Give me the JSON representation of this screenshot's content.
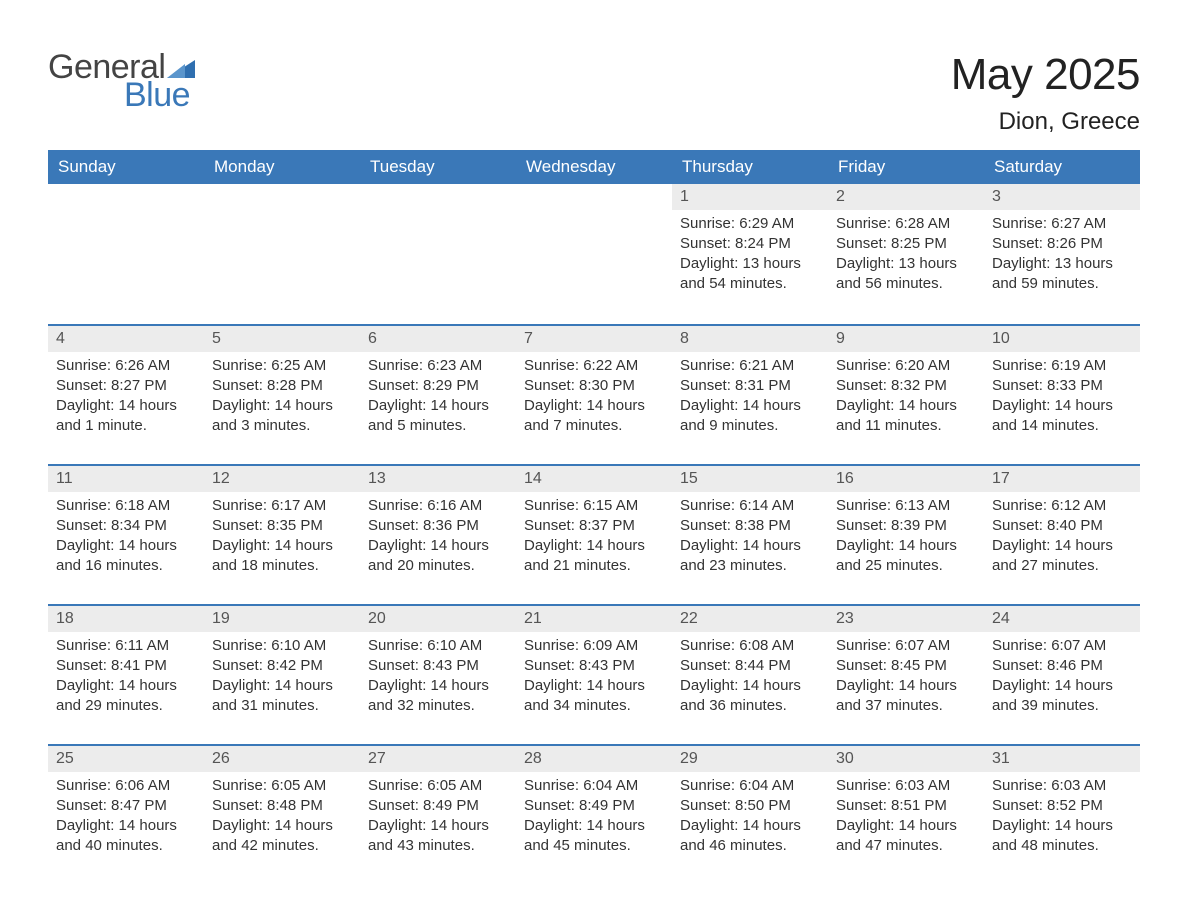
{
  "brand": {
    "word1": "General",
    "word2": "Blue",
    "tri_color": "#2f6fb0"
  },
  "title": "May 2025",
  "location": "Dion, Greece",
  "colors": {
    "header_bg": "#3a78b8",
    "header_text": "#ffffff",
    "row_band": "#ececec",
    "rule": "#3a78b8",
    "text": "#333333",
    "bg": "#ffffff"
  },
  "typography": {
    "title_fontsize": 44,
    "location_fontsize": 24,
    "dayheader_fontsize": 17,
    "cell_fontsize": 15,
    "logo_fontsize": 34
  },
  "layout": {
    "columns": 7,
    "rows": 5,
    "first_weekday_index": 4
  },
  "day_names": [
    "Sunday",
    "Monday",
    "Tuesday",
    "Wednesday",
    "Thursday",
    "Friday",
    "Saturday"
  ],
  "weeks": [
    [
      null,
      null,
      null,
      null,
      {
        "n": "1",
        "sunrise": "Sunrise: 6:29 AM",
        "sunset": "Sunset: 8:24 PM",
        "dl1": "Daylight: 13 hours",
        "dl2": "and 54 minutes."
      },
      {
        "n": "2",
        "sunrise": "Sunrise: 6:28 AM",
        "sunset": "Sunset: 8:25 PM",
        "dl1": "Daylight: 13 hours",
        "dl2": "and 56 minutes."
      },
      {
        "n": "3",
        "sunrise": "Sunrise: 6:27 AM",
        "sunset": "Sunset: 8:26 PM",
        "dl1": "Daylight: 13 hours",
        "dl2": "and 59 minutes."
      }
    ],
    [
      {
        "n": "4",
        "sunrise": "Sunrise: 6:26 AM",
        "sunset": "Sunset: 8:27 PM",
        "dl1": "Daylight: 14 hours",
        "dl2": "and 1 minute."
      },
      {
        "n": "5",
        "sunrise": "Sunrise: 6:25 AM",
        "sunset": "Sunset: 8:28 PM",
        "dl1": "Daylight: 14 hours",
        "dl2": "and 3 minutes."
      },
      {
        "n": "6",
        "sunrise": "Sunrise: 6:23 AM",
        "sunset": "Sunset: 8:29 PM",
        "dl1": "Daylight: 14 hours",
        "dl2": "and 5 minutes."
      },
      {
        "n": "7",
        "sunrise": "Sunrise: 6:22 AM",
        "sunset": "Sunset: 8:30 PM",
        "dl1": "Daylight: 14 hours",
        "dl2": "and 7 minutes."
      },
      {
        "n": "8",
        "sunrise": "Sunrise: 6:21 AM",
        "sunset": "Sunset: 8:31 PM",
        "dl1": "Daylight: 14 hours",
        "dl2": "and 9 minutes."
      },
      {
        "n": "9",
        "sunrise": "Sunrise: 6:20 AM",
        "sunset": "Sunset: 8:32 PM",
        "dl1": "Daylight: 14 hours",
        "dl2": "and 11 minutes."
      },
      {
        "n": "10",
        "sunrise": "Sunrise: 6:19 AM",
        "sunset": "Sunset: 8:33 PM",
        "dl1": "Daylight: 14 hours",
        "dl2": "and 14 minutes."
      }
    ],
    [
      {
        "n": "11",
        "sunrise": "Sunrise: 6:18 AM",
        "sunset": "Sunset: 8:34 PM",
        "dl1": "Daylight: 14 hours",
        "dl2": "and 16 minutes."
      },
      {
        "n": "12",
        "sunrise": "Sunrise: 6:17 AM",
        "sunset": "Sunset: 8:35 PM",
        "dl1": "Daylight: 14 hours",
        "dl2": "and 18 minutes."
      },
      {
        "n": "13",
        "sunrise": "Sunrise: 6:16 AM",
        "sunset": "Sunset: 8:36 PM",
        "dl1": "Daylight: 14 hours",
        "dl2": "and 20 minutes."
      },
      {
        "n": "14",
        "sunrise": "Sunrise: 6:15 AM",
        "sunset": "Sunset: 8:37 PM",
        "dl1": "Daylight: 14 hours",
        "dl2": "and 21 minutes."
      },
      {
        "n": "15",
        "sunrise": "Sunrise: 6:14 AM",
        "sunset": "Sunset: 8:38 PM",
        "dl1": "Daylight: 14 hours",
        "dl2": "and 23 minutes."
      },
      {
        "n": "16",
        "sunrise": "Sunrise: 6:13 AM",
        "sunset": "Sunset: 8:39 PM",
        "dl1": "Daylight: 14 hours",
        "dl2": "and 25 minutes."
      },
      {
        "n": "17",
        "sunrise": "Sunrise: 6:12 AM",
        "sunset": "Sunset: 8:40 PM",
        "dl1": "Daylight: 14 hours",
        "dl2": "and 27 minutes."
      }
    ],
    [
      {
        "n": "18",
        "sunrise": "Sunrise: 6:11 AM",
        "sunset": "Sunset: 8:41 PM",
        "dl1": "Daylight: 14 hours",
        "dl2": "and 29 minutes."
      },
      {
        "n": "19",
        "sunrise": "Sunrise: 6:10 AM",
        "sunset": "Sunset: 8:42 PM",
        "dl1": "Daylight: 14 hours",
        "dl2": "and 31 minutes."
      },
      {
        "n": "20",
        "sunrise": "Sunrise: 6:10 AM",
        "sunset": "Sunset: 8:43 PM",
        "dl1": "Daylight: 14 hours",
        "dl2": "and 32 minutes."
      },
      {
        "n": "21",
        "sunrise": "Sunrise: 6:09 AM",
        "sunset": "Sunset: 8:43 PM",
        "dl1": "Daylight: 14 hours",
        "dl2": "and 34 minutes."
      },
      {
        "n": "22",
        "sunrise": "Sunrise: 6:08 AM",
        "sunset": "Sunset: 8:44 PM",
        "dl1": "Daylight: 14 hours",
        "dl2": "and 36 minutes."
      },
      {
        "n": "23",
        "sunrise": "Sunrise: 6:07 AM",
        "sunset": "Sunset: 8:45 PM",
        "dl1": "Daylight: 14 hours",
        "dl2": "and 37 minutes."
      },
      {
        "n": "24",
        "sunrise": "Sunrise: 6:07 AM",
        "sunset": "Sunset: 8:46 PM",
        "dl1": "Daylight: 14 hours",
        "dl2": "and 39 minutes."
      }
    ],
    [
      {
        "n": "25",
        "sunrise": "Sunrise: 6:06 AM",
        "sunset": "Sunset: 8:47 PM",
        "dl1": "Daylight: 14 hours",
        "dl2": "and 40 minutes."
      },
      {
        "n": "26",
        "sunrise": "Sunrise: 6:05 AM",
        "sunset": "Sunset: 8:48 PM",
        "dl1": "Daylight: 14 hours",
        "dl2": "and 42 minutes."
      },
      {
        "n": "27",
        "sunrise": "Sunrise: 6:05 AM",
        "sunset": "Sunset: 8:49 PM",
        "dl1": "Daylight: 14 hours",
        "dl2": "and 43 minutes."
      },
      {
        "n": "28",
        "sunrise": "Sunrise: 6:04 AM",
        "sunset": "Sunset: 8:49 PM",
        "dl1": "Daylight: 14 hours",
        "dl2": "and 45 minutes."
      },
      {
        "n": "29",
        "sunrise": "Sunrise: 6:04 AM",
        "sunset": "Sunset: 8:50 PM",
        "dl1": "Daylight: 14 hours",
        "dl2": "and 46 minutes."
      },
      {
        "n": "30",
        "sunrise": "Sunrise: 6:03 AM",
        "sunset": "Sunset: 8:51 PM",
        "dl1": "Daylight: 14 hours",
        "dl2": "and 47 minutes."
      },
      {
        "n": "31",
        "sunrise": "Sunrise: 6:03 AM",
        "sunset": "Sunset: 8:52 PM",
        "dl1": "Daylight: 14 hours",
        "dl2": "and 48 minutes."
      }
    ]
  ]
}
